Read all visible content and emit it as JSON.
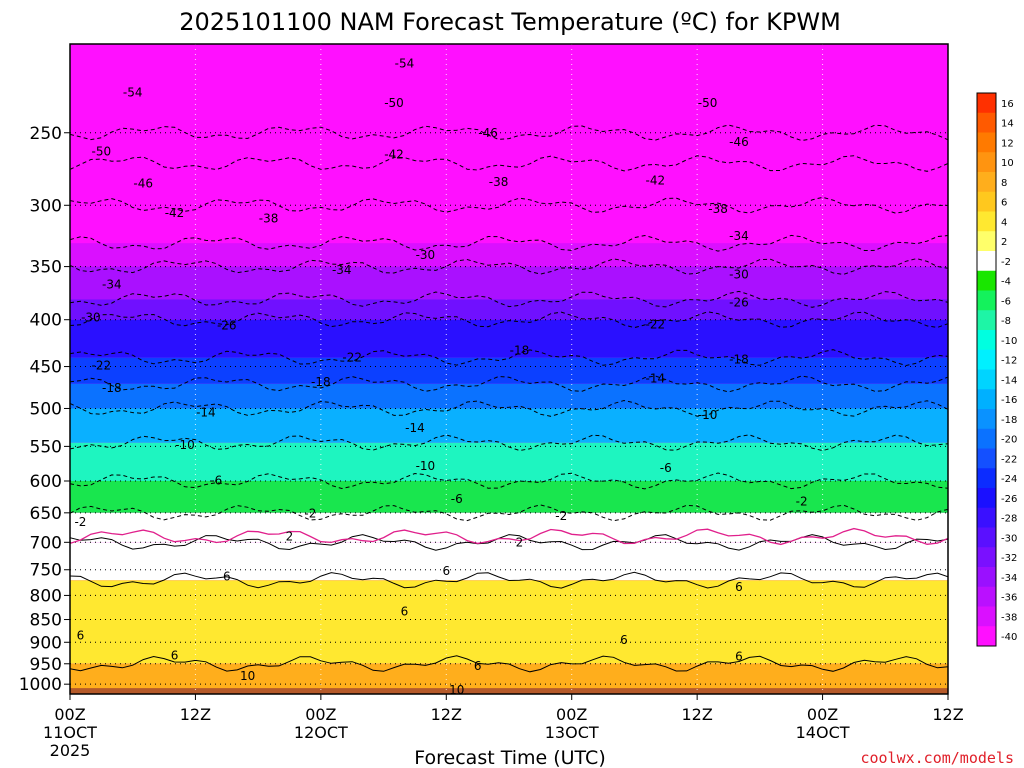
{
  "chart_data": {
    "type": "heatmap",
    "title": "2025101100 NAM Forecast Temperature (ºC) for KPWM",
    "xlabel": "Forecast Time (UTC)",
    "ylabel": "",
    "x_ticks": [
      {
        "hour": 0,
        "label": "00Z",
        "sub": "11OCT",
        "sub2": "2025"
      },
      {
        "hour": 12,
        "label": "12Z",
        "sub": "",
        "sub2": ""
      },
      {
        "hour": 24,
        "label": "00Z",
        "sub": "12OCT",
        "sub2": ""
      },
      {
        "hour": 36,
        "label": "12Z",
        "sub": "",
        "sub2": ""
      },
      {
        "hour": 48,
        "label": "00Z",
        "sub": "13OCT",
        "sub2": ""
      },
      {
        "hour": 60,
        "label": "12Z",
        "sub": "",
        "sub2": ""
      },
      {
        "hour": 72,
        "label": "00Z",
        "sub": "14OCT",
        "sub2": ""
      },
      {
        "hour": 84,
        "label": "12Z",
        "sub": "",
        "sub2": ""
      }
    ],
    "xlim": [
      0,
      84
    ],
    "y_ticks": [
      250,
      300,
      350,
      400,
      450,
      500,
      550,
      600,
      650,
      700,
      750,
      800,
      850,
      900,
      950,
      1000
    ],
    "ylim": [
      200,
      1025
    ],
    "y_scale": "log-pressure",
    "grid": "dotted",
    "colorbar": {
      "position": "right",
      "labels": [
        "16",
        "14",
        "12",
        "10",
        "8",
        "6",
        "4",
        "2",
        "-2",
        "-4",
        "-6",
        "-8",
        "-10",
        "-12",
        "-14",
        "-16",
        "-18",
        "-20",
        "-22",
        "-24",
        "-26",
        "-28",
        "-30",
        "-32",
        "-34",
        "-36",
        "-38",
        "-40"
      ],
      "colors": [
        "#ff3000",
        "#ff5a00",
        "#ff7a00",
        "#ff9410",
        "#ffae1c",
        "#ffc81e",
        "#ffe830",
        "#ffff6a",
        "#ffffff",
        "#19e600",
        "#14f25c",
        "#1ef5a6",
        "#00ffe0",
        "#00f0ff",
        "#00d4ff",
        "#00b0ff",
        "#0a92ff",
        "#0b72ff",
        "#1450ff",
        "#0c2cff",
        "#1a10ff",
        "#3a10ff",
        "#5a10ff",
        "#7a10ff",
        "#9a10ff",
        "#ba10ff",
        "#da10ff",
        "#ff10ff"
      ]
    },
    "profile": [
      {
        "p": 225,
        "t": -54
      },
      {
        "p": 250,
        "t": -50
      },
      {
        "p": 270,
        "t": -46
      },
      {
        "p": 300,
        "t": -42
      },
      {
        "p": 330,
        "t": -38
      },
      {
        "p": 350,
        "t": -34
      },
      {
        "p": 380,
        "t": -30
      },
      {
        "p": 400,
        "t": -26
      },
      {
        "p": 440,
        "t": -22
      },
      {
        "p": 470,
        "t": -18
      },
      {
        "p": 500,
        "t": -14
      },
      {
        "p": 545,
        "t": -10
      },
      {
        "p": 600,
        "t": -6
      },
      {
        "p": 650,
        "t": -2
      },
      {
        "p": 700,
        "t": 2
      },
      {
        "p": 770,
        "t": 6
      },
      {
        "p": 950,
        "t": 10
      }
    ],
    "contour_labels": [
      {
        "h": 6,
        "p": 226,
        "text": "-54"
      },
      {
        "h": 32,
        "p": 210,
        "text": "-54"
      },
      {
        "h": 3,
        "p": 262,
        "text": "-50"
      },
      {
        "h": 31,
        "p": 232,
        "text": "-50"
      },
      {
        "h": 61,
        "p": 232,
        "text": "-50"
      },
      {
        "h": 7,
        "p": 284,
        "text": "-46"
      },
      {
        "h": 40,
        "p": 250,
        "text": "-46"
      },
      {
        "h": 64,
        "p": 256,
        "text": "-46"
      },
      {
        "h": 10,
        "p": 306,
        "text": "-42"
      },
      {
        "h": 31,
        "p": 264,
        "text": "-42"
      },
      {
        "h": 56,
        "p": 282,
        "text": "-42"
      },
      {
        "h": 19,
        "p": 310,
        "text": "-38"
      },
      {
        "h": 41,
        "p": 283,
        "text": "-38"
      },
      {
        "h": 62,
        "p": 303,
        "text": "-38"
      },
      {
        "h": 26,
        "p": 353,
        "text": "-34"
      },
      {
        "h": 4,
        "p": 366,
        "text": "-34"
      },
      {
        "h": 64,
        "p": 324,
        "text": "-34"
      },
      {
        "h": 2,
        "p": 398,
        "text": "-30"
      },
      {
        "h": 34,
        "p": 340,
        "text": "-30"
      },
      {
        "h": 64,
        "p": 357,
        "text": "-30"
      },
      {
        "h": 15,
        "p": 406,
        "text": "-26"
      },
      {
        "h": 64,
        "p": 383,
        "text": "-26"
      },
      {
        "h": 3,
        "p": 449,
        "text": "-22"
      },
      {
        "h": 27,
        "p": 440,
        "text": "-22"
      },
      {
        "h": 56,
        "p": 405,
        "text": "-22"
      },
      {
        "h": 4,
        "p": 475,
        "text": "-18"
      },
      {
        "h": 24,
        "p": 468,
        "text": "-18"
      },
      {
        "h": 43,
        "p": 432,
        "text": "-18"
      },
      {
        "h": 64,
        "p": 442,
        "text": "-18"
      },
      {
        "h": 13,
        "p": 505,
        "text": "-14"
      },
      {
        "h": 33,
        "p": 525,
        "text": "-14"
      },
      {
        "h": 56,
        "p": 464,
        "text": "-14"
      },
      {
        "h": 11,
        "p": 548,
        "text": "-10"
      },
      {
        "h": 34,
        "p": 578,
        "text": "-10"
      },
      {
        "h": 61,
        "p": 508,
        "text": "-10"
      },
      {
        "h": 14,
        "p": 599,
        "text": "-6"
      },
      {
        "h": 37,
        "p": 628,
        "text": "-6"
      },
      {
        "h": 57,
        "p": 581,
        "text": "-6"
      },
      {
        "h": 1,
        "p": 665,
        "text": "-2"
      },
      {
        "h": 23,
        "p": 651,
        "text": "-2"
      },
      {
        "h": 47,
        "p": 655,
        "text": "-2"
      },
      {
        "h": 70,
        "p": 632,
        "text": "-2"
      },
      {
        "h": 21,
        "p": 690,
        "text": "2"
      },
      {
        "h": 43,
        "p": 700,
        "text": "2"
      },
      {
        "h": 15,
        "p": 763,
        "text": "6"
      },
      {
        "h": 36,
        "p": 752,
        "text": "6"
      },
      {
        "h": 32,
        "p": 833,
        "text": "6"
      },
      {
        "h": 1,
        "p": 885,
        "text": "6"
      },
      {
        "h": 10,
        "p": 930,
        "text": "6"
      },
      {
        "h": 39,
        "p": 955,
        "text": "6"
      },
      {
        "h": 53,
        "p": 895,
        "text": "6"
      },
      {
        "h": 64,
        "p": 783,
        "text": "6"
      },
      {
        "h": 64,
        "p": 933,
        "text": "6"
      },
      {
        "h": 17,
        "p": 980,
        "text": "10"
      },
      {
        "h": 37,
        "p": 1040,
        "text": "10"
      }
    ],
    "watermark": "coolwx.com/models"
  }
}
